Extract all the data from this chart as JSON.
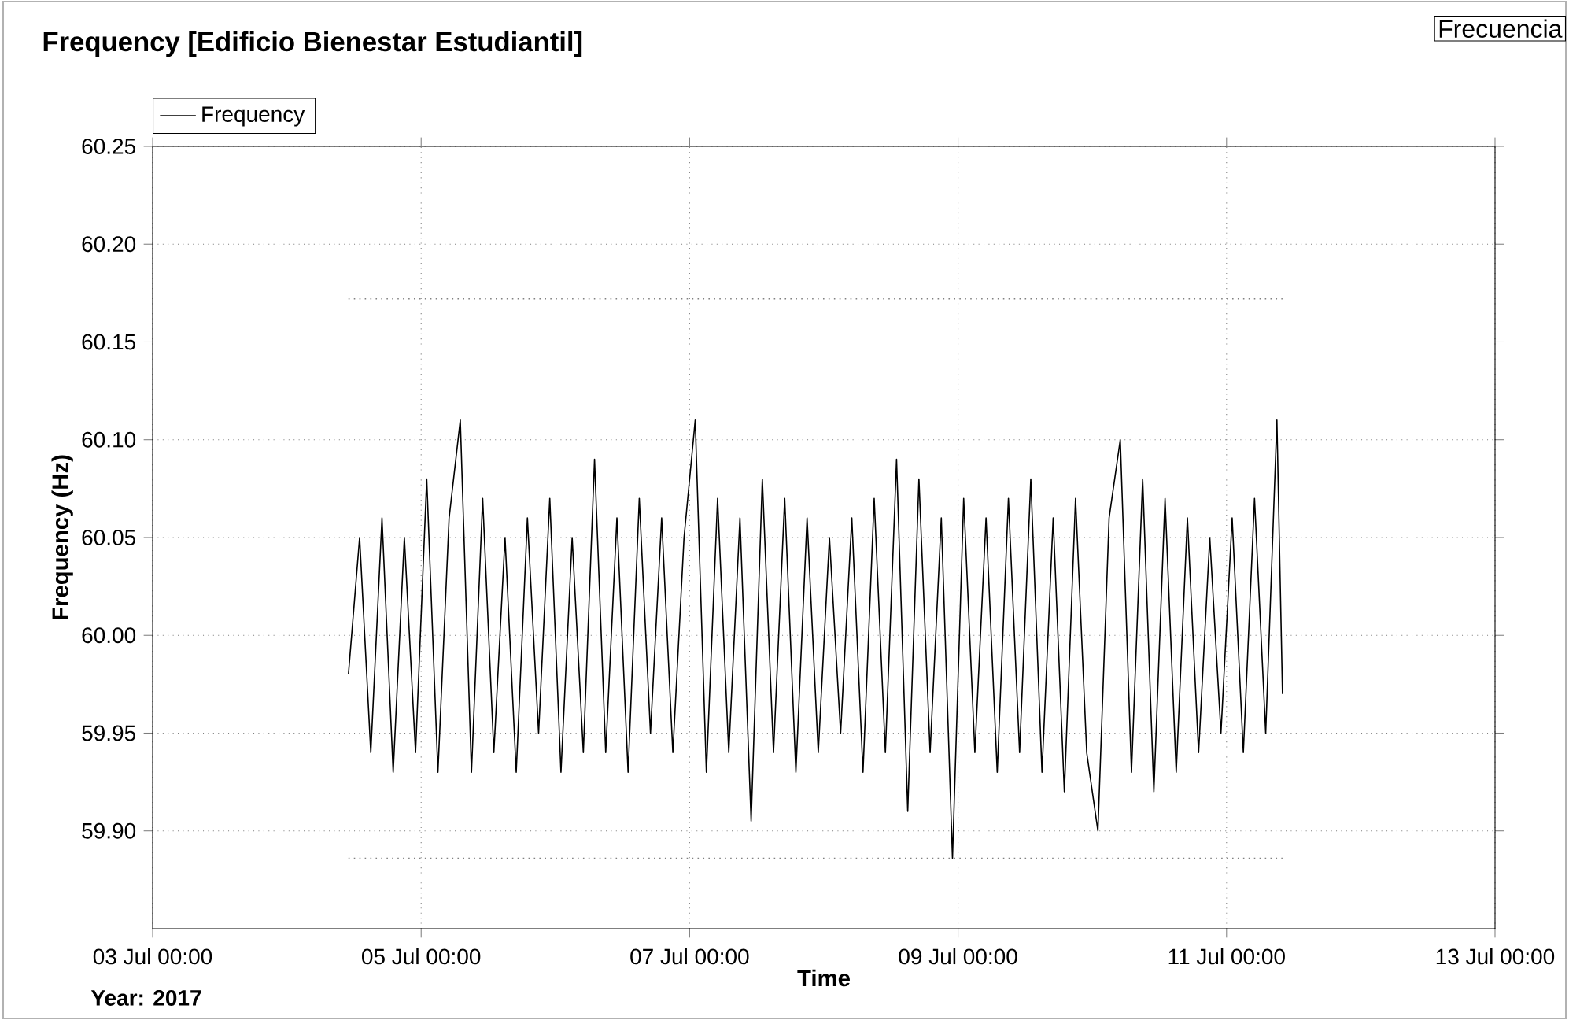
{
  "chart_data": {
    "type": "line",
    "title": "Frequency   [Edificio Bienestar Estudiantil]",
    "xlabel": "Time",
    "ylabel": "Frequency (Hz)",
    "annotations": [
      "Year: 2017",
      "Frecuencia"
    ],
    "xlim": [
      "2017-07-03",
      "2017-07-13"
    ],
    "xticks": [
      {
        "value": "2017-07-03",
        "label": "03 Jul 00:00"
      },
      {
        "value": "2017-07-05",
        "label": "05 Jul 00:00"
      },
      {
        "value": "2017-07-07",
        "label": "07 Jul 00:00"
      },
      {
        "value": "2017-07-09",
        "label": "09 Jul 00:00"
      },
      {
        "value": "2017-07-11",
        "label": "11 Jul 00:00"
      },
      {
        "value": "2017-07-13",
        "label": "13 Jul 00:00"
      }
    ],
    "ylim": [
      59.85,
      60.25
    ],
    "yticks": [
      {
        "value": 59.9,
        "label": "59.90"
      },
      {
        "value": 59.95,
        "label": "59.95"
      },
      {
        "value": 60.0,
        "label": "60.00"
      },
      {
        "value": 60.05,
        "label": "60.05"
      },
      {
        "value": 60.1,
        "label": "60.10"
      },
      {
        "value": 60.15,
        "label": "60.15"
      },
      {
        "value": 60.2,
        "label": "60.20"
      },
      {
        "value": 60.25,
        "label": "60.25"
      }
    ],
    "grid": true,
    "legend": "top left",
    "marker": "none",
    "line_style": "solid",
    "ref_lines": [
      {
        "axis": "y",
        "value": 60.172,
        "color": "#808080",
        "line_style": "dotted"
      },
      {
        "axis": "y",
        "value": 59.886,
        "color": "#808080",
        "line_style": "dotted"
      }
    ],
    "x": [
      "2017-07-04T11:00",
      "2017-07-04T13:00",
      "2017-07-04T15:00",
      "2017-07-04T17:00",
      "2017-07-04T19:00",
      "2017-07-04T21:00",
      "2017-07-04T23:00",
      "2017-07-05T01:00",
      "2017-07-05T03:00",
      "2017-07-05T05:00",
      "2017-07-05T07:00",
      "2017-07-05T09:00",
      "2017-07-05T11:00",
      "2017-07-05T13:00",
      "2017-07-05T15:00",
      "2017-07-05T17:00",
      "2017-07-05T19:00",
      "2017-07-05T21:00",
      "2017-07-05T23:00",
      "2017-07-06T01:00",
      "2017-07-06T03:00",
      "2017-07-06T05:00",
      "2017-07-06T07:00",
      "2017-07-06T09:00",
      "2017-07-06T11:00",
      "2017-07-06T13:00",
      "2017-07-06T15:00",
      "2017-07-06T17:00",
      "2017-07-06T19:00",
      "2017-07-06T21:00",
      "2017-07-06T23:00",
      "2017-07-07T01:00",
      "2017-07-07T03:00",
      "2017-07-07T05:00",
      "2017-07-07T07:00",
      "2017-07-07T09:00",
      "2017-07-07T11:00",
      "2017-07-07T13:00",
      "2017-07-07T15:00",
      "2017-07-07T17:00",
      "2017-07-07T19:00",
      "2017-07-07T21:00",
      "2017-07-07T23:00",
      "2017-07-08T01:00",
      "2017-07-08T03:00",
      "2017-07-08T05:00",
      "2017-07-08T07:00",
      "2017-07-08T09:00",
      "2017-07-08T11:00",
      "2017-07-08T13:00",
      "2017-07-08T15:00",
      "2017-07-08T17:00",
      "2017-07-08T19:00",
      "2017-07-08T21:00",
      "2017-07-08T23:00",
      "2017-07-09T01:00",
      "2017-07-09T03:00",
      "2017-07-09T05:00",
      "2017-07-09T07:00",
      "2017-07-09T09:00",
      "2017-07-09T11:00",
      "2017-07-09T13:00",
      "2017-07-09T15:00",
      "2017-07-09T17:00",
      "2017-07-09T19:00",
      "2017-07-09T21:00",
      "2017-07-09T23:00",
      "2017-07-10T01:00",
      "2017-07-10T03:00",
      "2017-07-10T05:00",
      "2017-07-10T07:00",
      "2017-07-10T09:00",
      "2017-07-10T11:00",
      "2017-07-10T13:00",
      "2017-07-10T15:00",
      "2017-07-10T17:00",
      "2017-07-10T19:00",
      "2017-07-10T21:00",
      "2017-07-10T23:00",
      "2017-07-11T01:00",
      "2017-07-11T03:00",
      "2017-07-11T05:00",
      "2017-07-11T07:00",
      "2017-07-11T09:00",
      "2017-07-11T10:00"
    ],
    "series": [
      {
        "name": "Frequency",
        "color": "#000000",
        "values": [
          59.98,
          60.05,
          59.94,
          60.06,
          59.93,
          60.05,
          59.94,
          60.08,
          59.93,
          60.06,
          60.11,
          59.93,
          60.07,
          59.94,
          60.05,
          59.93,
          60.06,
          59.95,
          60.07,
          59.93,
          60.05,
          59.94,
          60.09,
          59.94,
          60.06,
          59.93,
          60.07,
          59.95,
          60.06,
          59.94,
          60.05,
          60.11,
          59.93,
          60.07,
          59.94,
          60.06,
          59.905,
          60.08,
          59.94,
          60.07,
          59.93,
          60.06,
          59.94,
          60.05,
          59.95,
          60.06,
          59.93,
          60.07,
          59.94,
          60.09,
          59.91,
          60.08,
          59.94,
          60.06,
          59.886,
          60.07,
          59.94,
          60.06,
          59.93,
          60.07,
          59.94,
          60.08,
          59.93,
          60.06,
          59.92,
          60.07,
          59.94,
          59.9,
          60.06,
          60.1,
          59.93,
          60.08,
          59.92,
          60.07,
          59.93,
          60.06,
          59.94,
          60.05,
          59.95,
          60.06,
          59.94,
          60.07,
          59.95,
          60.11,
          59.97
        ]
      }
    ]
  }
}
